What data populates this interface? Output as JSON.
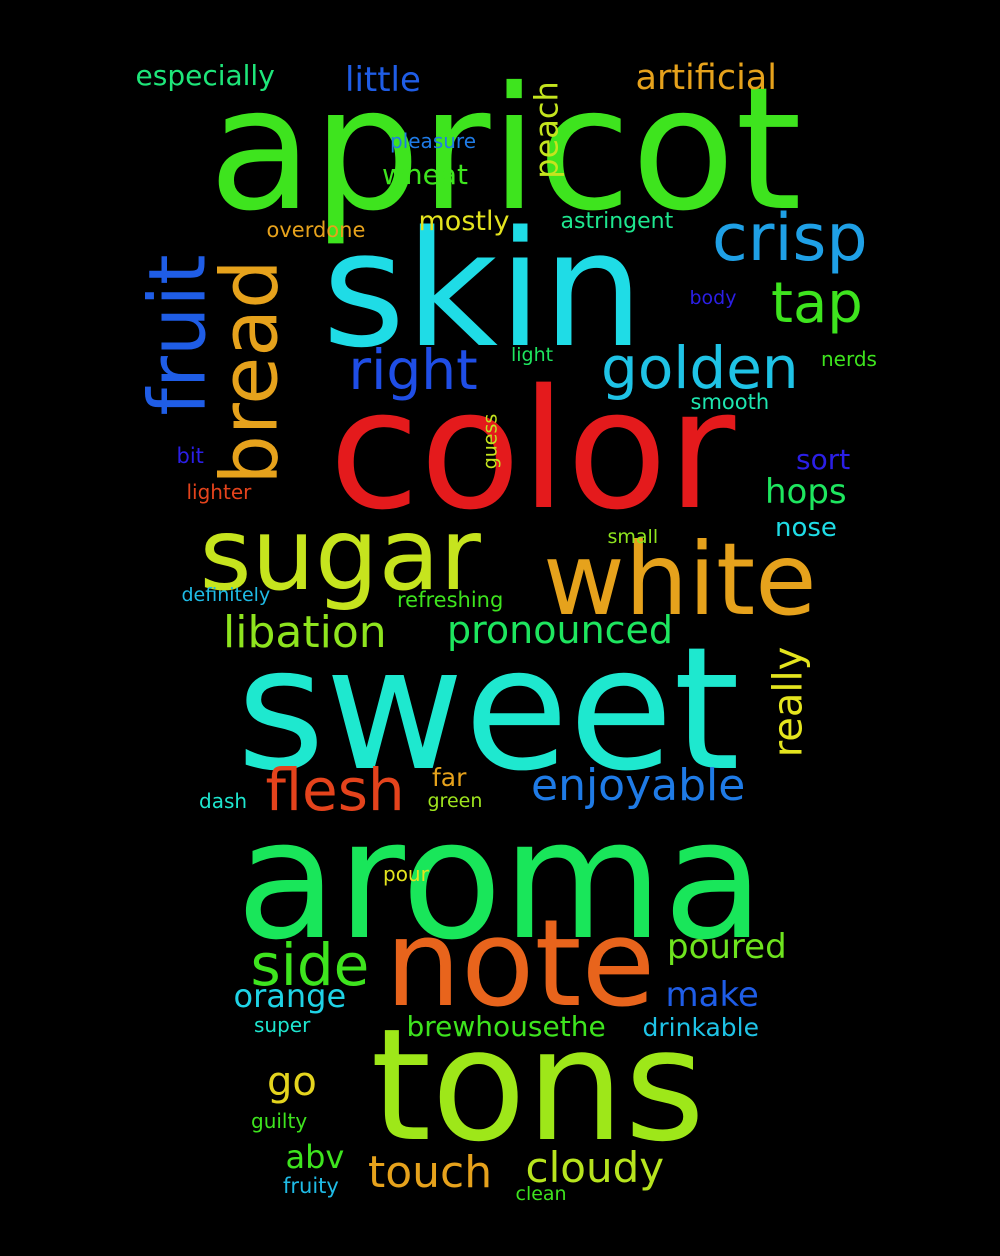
{
  "words": [
    {
      "text": "apricot",
      "color": "#3ee41e",
      "vertical": false
    },
    {
      "text": "skin",
      "color": "#1fdce6",
      "vertical": false
    },
    {
      "text": "color",
      "color": "#e41a1c",
      "vertical": false
    },
    {
      "text": "sweet",
      "color": "#1ee8cf",
      "vertical": false
    },
    {
      "text": "aroma",
      "color": "#19e65a",
      "vertical": false
    },
    {
      "text": "tons",
      "color": "#9ee719",
      "vertical": false
    },
    {
      "text": "note",
      "color": "#e8641c",
      "vertical": false
    },
    {
      "text": "sugar",
      "color": "#c6e41e",
      "vertical": false
    },
    {
      "text": "white",
      "color": "#e6a21c",
      "vertical": false
    },
    {
      "text": "fruit",
      "color": "#1f5de6",
      "vertical": true
    },
    {
      "text": "bread",
      "color": "#e6a21c",
      "vertical": true
    },
    {
      "text": "crisp",
      "color": "#1fa0e6",
      "vertical": false
    },
    {
      "text": "golden",
      "color": "#1fc3e6",
      "vertical": false
    },
    {
      "text": "right",
      "color": "#1f4ee6",
      "vertical": false
    },
    {
      "text": "tap",
      "color": "#3ee41e",
      "vertical": false
    },
    {
      "text": "flesh",
      "color": "#e4431c",
      "vertical": false
    },
    {
      "text": "side",
      "color": "#3ee41e",
      "vertical": false
    },
    {
      "text": "libation",
      "color": "#8ee41e",
      "vertical": false
    },
    {
      "text": "pronounced",
      "color": "#1ee65f",
      "vertical": false
    },
    {
      "text": "enjoyable",
      "color": "#1f7be6",
      "vertical": false
    },
    {
      "text": "really",
      "color": "#e4e41e",
      "vertical": true
    },
    {
      "text": "touch",
      "color": "#e6a21c",
      "vertical": false
    },
    {
      "text": "cloudy",
      "color": "#b7e41e",
      "vertical": false
    },
    {
      "text": "go",
      "color": "#e4d41e",
      "vertical": false
    },
    {
      "text": "poured",
      "color": "#6ee41e",
      "vertical": false
    },
    {
      "text": "make",
      "color": "#1f5de6",
      "vertical": false
    },
    {
      "text": "orange",
      "color": "#1fd3e6",
      "vertical": false
    },
    {
      "text": "little",
      "color": "#1f5de6",
      "vertical": false
    },
    {
      "text": "artificial",
      "color": "#e6a21c",
      "vertical": false
    },
    {
      "text": "especially",
      "color": "#1ee67a",
      "vertical": false
    },
    {
      "text": "peach",
      "color": "#c4e41e",
      "vertical": true
    },
    {
      "text": "hops",
      "color": "#1ee65f",
      "vertical": false
    },
    {
      "text": "abv",
      "color": "#3ee41e",
      "vertical": false
    },
    {
      "text": "wheat",
      "color": "#3ee41e",
      "vertical": false
    },
    {
      "text": "mostly",
      "color": "#e4e41e",
      "vertical": false
    },
    {
      "text": "brewhousethe",
      "color": "#3ee41e",
      "vertical": false
    },
    {
      "text": "drinkable",
      "color": "#1fc3e6",
      "vertical": false
    },
    {
      "text": "sort",
      "color": "#2b1fe6",
      "vertical": false
    },
    {
      "text": "nose",
      "color": "#1fdce6",
      "vertical": false
    },
    {
      "text": "far",
      "color": "#e6a21c",
      "vertical": false
    },
    {
      "text": "pleasure",
      "color": "#1f7be6",
      "vertical": false
    },
    {
      "text": "astringent",
      "color": "#1ee68f",
      "vertical": false
    },
    {
      "text": "overdone",
      "color": "#e6a21c",
      "vertical": false
    },
    {
      "text": "body",
      "color": "#2b1fe6",
      "vertical": false
    },
    {
      "text": "light",
      "color": "#1ee65f",
      "vertical": false
    },
    {
      "text": "nerds",
      "color": "#3ee41e",
      "vertical": false
    },
    {
      "text": "smooth",
      "color": "#1ee6b0",
      "vertical": false
    },
    {
      "text": "guess",
      "color": "#c4e41e",
      "vertical": true
    },
    {
      "text": "bit",
      "color": "#2b1fe6",
      "vertical": false
    },
    {
      "text": "lighter",
      "color": "#e4431c",
      "vertical": false
    },
    {
      "text": "small",
      "color": "#8ee41e",
      "vertical": false
    },
    {
      "text": "definitely",
      "color": "#1fbbe6",
      "vertical": false
    },
    {
      "text": "refreshing",
      "color": "#3ee41e",
      "vertical": false
    },
    {
      "text": "dash",
      "color": "#1ee6cf",
      "vertical": false
    },
    {
      "text": "green",
      "color": "#9ee41e",
      "vertical": false
    },
    {
      "text": "pour",
      "color": "#e4e41e",
      "vertical": false
    },
    {
      "text": "super",
      "color": "#1ee6cf",
      "vertical": false
    },
    {
      "text": "guilty",
      "color": "#3ee41e",
      "vertical": false
    },
    {
      "text": "fruity",
      "color": "#1fbbe6",
      "vertical": false
    },
    {
      "text": "clean",
      "color": "#3ee41e",
      "vertical": false
    }
  ]
}
